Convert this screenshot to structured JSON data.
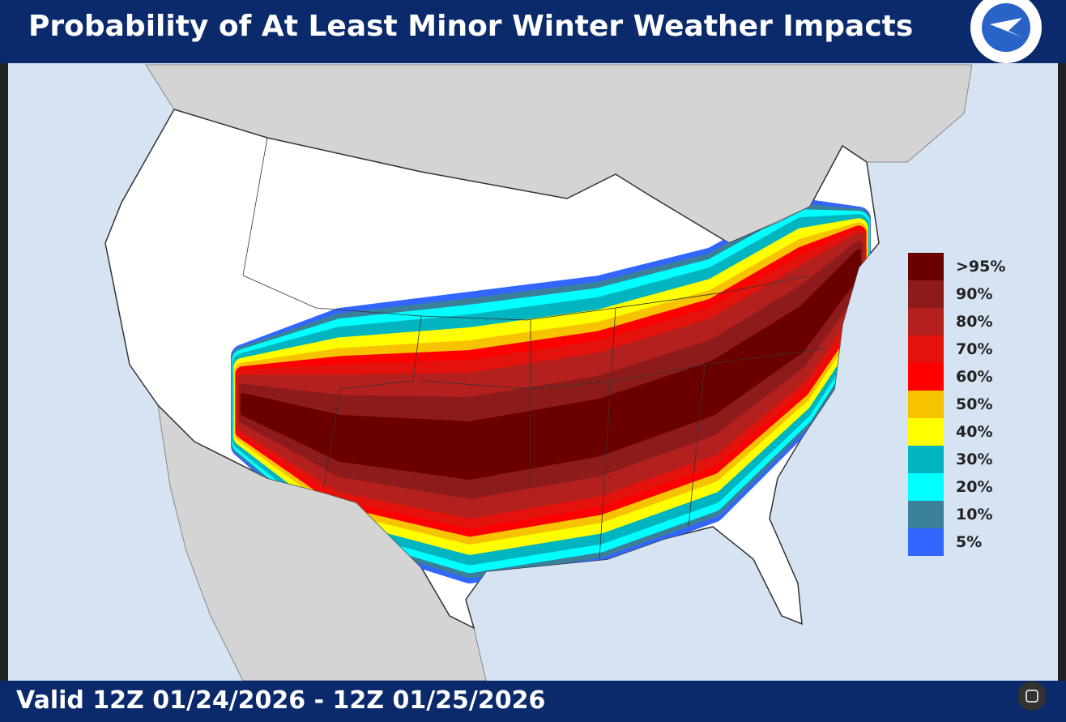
{
  "header": {
    "title": "Probability of At Least Minor Winter Weather Impacts"
  },
  "legend": {
    "items": [
      {
        "label": ">95%",
        "color": "#6b0000"
      },
      {
        "label": "90%",
        "color": "#8e1b1b"
      },
      {
        "label": "80%",
        "color": "#b3201e"
      },
      {
        "label": "70%",
        "color": "#e3120c"
      },
      {
        "label": "60%",
        "color": "#ff0000"
      },
      {
        "label": "50%",
        "color": "#f7c200"
      },
      {
        "label": "40%",
        "color": "#ffff00"
      },
      {
        "label": "30%",
        "color": "#00b5bf"
      },
      {
        "label": "20%",
        "color": "#00ffff"
      },
      {
        "label": "10%",
        "color": "#3a8099"
      },
      {
        "label": "5%",
        "color": "#3366ff"
      }
    ]
  },
  "footer": {
    "valid": "Valid 12Z 01/24/2026  - 12Z 01/25/2026"
  }
}
